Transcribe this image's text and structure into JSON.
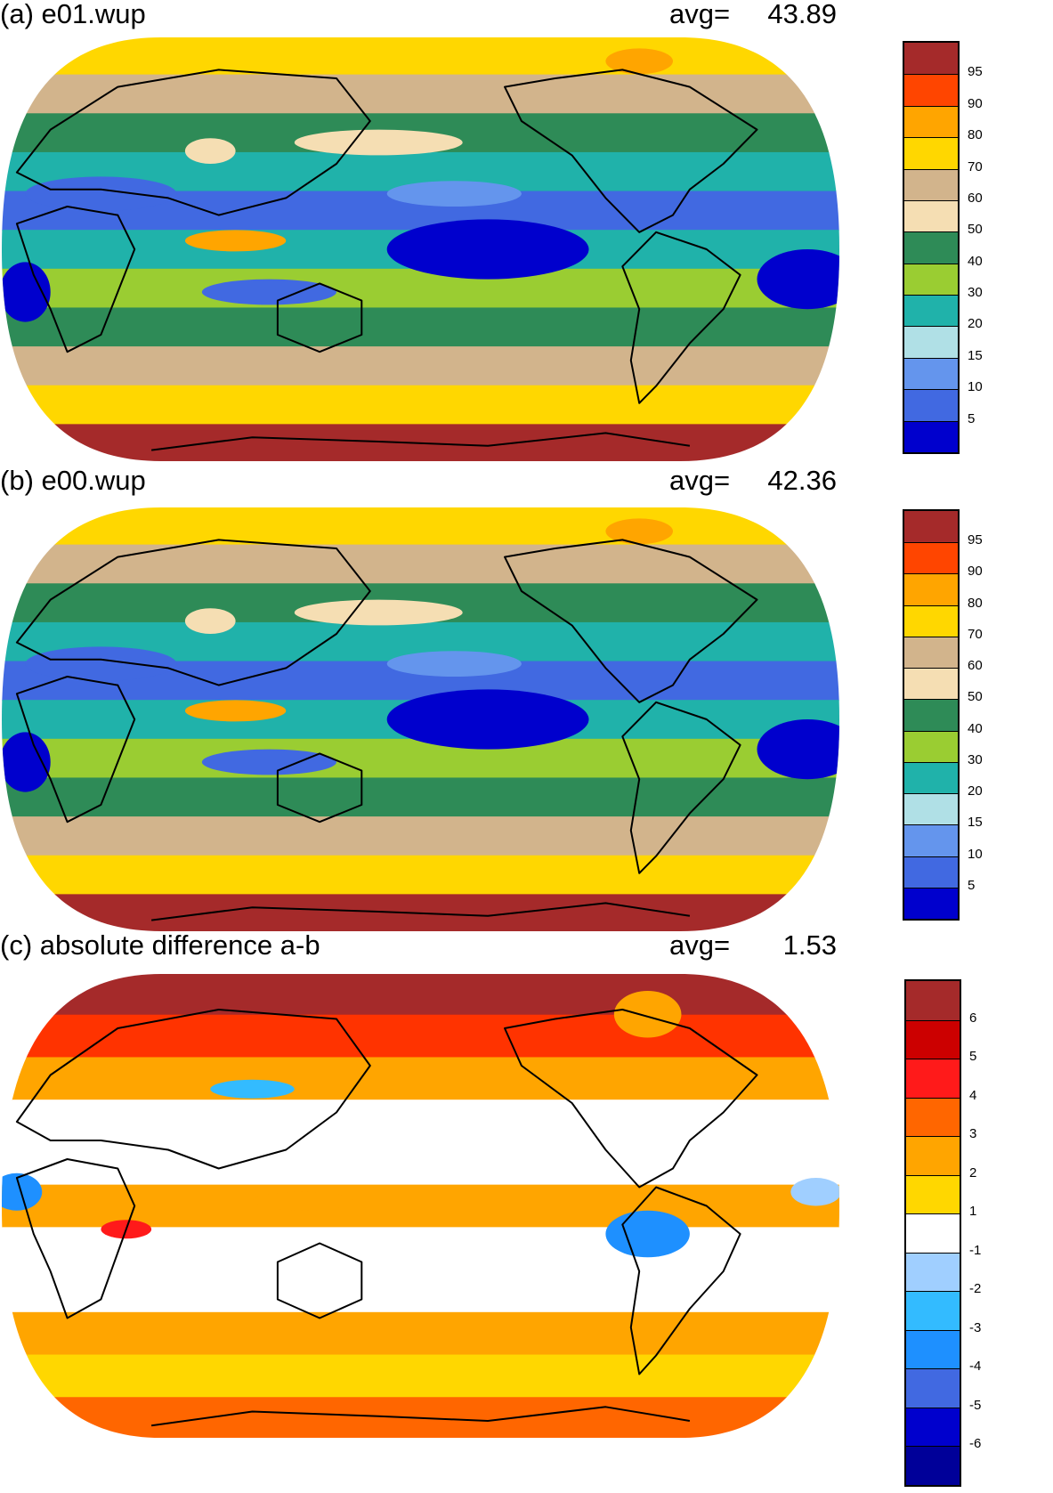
{
  "panels": [
    {
      "id": "a",
      "title": "(a) e01.wup",
      "avg_label": "avg=",
      "avg_value": "43.89",
      "colorbar": {
        "ticks": [
          "95",
          "90",
          "80",
          "70",
          "60",
          "50",
          "40",
          "30",
          "20",
          "15",
          "10",
          "5"
        ],
        "colors": [
          "#a52a2a",
          "#ff4500",
          "#ffa500",
          "#ffd700",
          "#d2b48c",
          "#f5deb3",
          "#2e8b57",
          "#9acd32",
          "#20b2aa",
          "#b0e0e6",
          "#6495ed",
          "#4169e1",
          "#0000cd"
        ]
      },
      "bands": [
        "#ffd700",
        "#d2b48c",
        "#2e8b57",
        "#20b2aa",
        "#4169e1",
        "#20b2aa",
        "#9acd32",
        "#2e8b57",
        "#d2b48c",
        "#ffd700",
        "#a52a2a"
      ]
    },
    {
      "id": "b",
      "title": "(b) e00.wup",
      "avg_label": "avg=",
      "avg_value": "42.36",
      "colorbar": {
        "ticks": [
          "95",
          "90",
          "80",
          "70",
          "60",
          "50",
          "40",
          "30",
          "20",
          "15",
          "10",
          "5"
        ],
        "colors": [
          "#a52a2a",
          "#ff4500",
          "#ffa500",
          "#ffd700",
          "#d2b48c",
          "#f5deb3",
          "#2e8b57",
          "#9acd32",
          "#20b2aa",
          "#b0e0e6",
          "#6495ed",
          "#4169e1",
          "#0000cd"
        ]
      },
      "bands": [
        "#ffd700",
        "#d2b48c",
        "#2e8b57",
        "#20b2aa",
        "#4169e1",
        "#20b2aa",
        "#9acd32",
        "#2e8b57",
        "#d2b48c",
        "#ffd700",
        "#a52a2a"
      ]
    },
    {
      "id": "c",
      "title": "(c) absolute difference a-b",
      "avg_label": "avg=",
      "avg_value": "1.53",
      "colorbar": {
        "ticks": [
          "6",
          "5",
          "4",
          "3",
          "2",
          "1",
          "-1",
          "-2",
          "-3",
          "-4",
          "-5",
          "-6"
        ],
        "colors": [
          "#a52a2a",
          "#cc0000",
          "#ff1a1a",
          "#ff6600",
          "#ffa500",
          "#ffd700",
          "#ffffff",
          "#a0cfff",
          "#33bbff",
          "#1e90ff",
          "#4169e1",
          "#0000cd",
          "#000099"
        ]
      },
      "bands": [
        "#a52a2a",
        "#ff3300",
        "#ffa500",
        "#ffffff",
        "#ffffff",
        "#ffa500",
        "#ffffff",
        "#ffffff",
        "#ffa500",
        "#ffd700",
        "#ff6600"
      ]
    }
  ]
}
